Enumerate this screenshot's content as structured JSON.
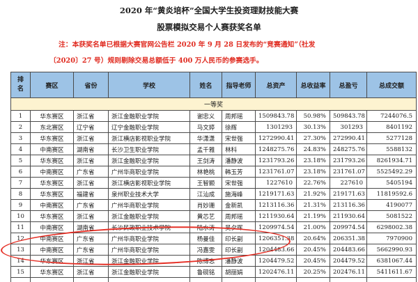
{
  "document": {
    "title_line1": "2020 年“黄炎培杯”全国大学生投资理财技能大赛",
    "title_line2": "股票模拟交易个人赛获奖名单",
    "note_line1": "注：本获奖名单已根据大赛官网公告栏 2020 年 9 月 28 日发布的“竞赛通知”（社发",
    "note_line2": "〔2020〕27 号）规则剔除交易总额低于 400 万人民币的参赛选手。"
  },
  "table": {
    "headers": [
      "排名",
      "赛区",
      "省份",
      "学校",
      "姓名",
      "指导老师",
      "总资产",
      "总收益率",
      "总盈亏",
      "总成交额"
    ],
    "section_label": "一等奖",
    "rows": [
      [
        "1",
        "华东赛区",
        "浙江省",
        "浙江金融职业学院",
        "谢忠义",
        "周邦瑶",
        "1509843.78",
        "50.98%",
        "509843.78",
        "7244076.5"
      ],
      [
        "2",
        "东北赛区",
        "辽宁省",
        "辽宁金融职业学院",
        "马文婷",
        "徐辉",
        "1301293",
        "30.13%",
        "301293",
        "8401192"
      ],
      [
        "3",
        "华东赛区",
        "浙江省",
        "浙江横店影视职业学院",
        "华潇潇",
        "宋世强",
        "1272990.41",
        "27.30%",
        "272990.41",
        "5277128"
      ],
      [
        "4",
        "中南赛区",
        "湖南省",
        "长沙卫生职业学院",
        "孟千雅",
        "林科",
        "1248275.76",
        "24.83%",
        "248275.76",
        "5588132"
      ],
      [
        "5",
        "华东赛区",
        "浙江省",
        "浙江金融职业学院",
        "王剑涛",
        "潘静波",
        "1231793.26",
        "23.18%",
        "231793.26",
        "8261934.71"
      ],
      [
        "6",
        "中南赛区",
        "广东省",
        "广州华商职业学院",
        "林艳桃",
        "韩玉芳",
        "1231761.07",
        "23.18%",
        "231761.07",
        "5525492.29"
      ],
      [
        "7",
        "华东赛区",
        "浙江省",
        "浙江横店影视职业学院",
        "王智颢",
        "宋世强",
        "1227610",
        "22.76%",
        "227610",
        "5405194"
      ],
      [
        "8",
        "华东赛区",
        "福建省",
        "泉州职业技术大学",
        "江汕成",
        "施海峰",
        "1219171.63",
        "21.92%",
        "219171.63",
        "11819592.6"
      ],
      [
        "9",
        "中南赛区",
        "广东省",
        "广州华商职业学院",
        "肖妙珊",
        "金新凯",
        "1213116.36",
        "21.31%",
        "213116.36",
        "4190077"
      ],
      [
        "10",
        "华东赛区",
        "浙江省",
        "浙江金融职业学院",
        "黄芯艺",
        "周邦瑶",
        "1211930.64",
        "21.19%",
        "211930.64",
        "5081522"
      ],
      [
        "11",
        "中南赛区",
        "湖南省",
        "长沙民政职业技术学院",
        "陆水涛",
        "吴夕晖",
        "1209974.54",
        "21.00%",
        "209974.54",
        "6298002.38"
      ],
      [
        "12",
        "中南赛区",
        "广东省",
        "广州华商职业学院",
        "杨曼佳",
        "印长副",
        "1206351.38",
        "20.64%",
        "206351.38",
        "7970900"
      ],
      [
        "13",
        "中南赛区",
        "广东省",
        "广州华商职业学院",
        "冯嘉雯",
        "印长副",
        "1204483.66",
        "20.45%",
        "204483.66",
        "5662990.93"
      ],
      [
        "14",
        "华东赛区",
        "浙江省",
        "浙江金融职业学院",
        "陈博志",
        "潘静波",
        "1204479.52",
        "20.45%",
        "204479.52",
        "6381067.44"
      ],
      [
        "15",
        "华东赛区",
        "浙江省",
        "浙江金融职业学院",
        "鲁砚铭",
        "胡丽娟",
        "1202476.11",
        "20.25%",
        "202476.11",
        "5411611.67"
      ]
    ]
  },
  "annotation": {
    "shape": "hand-drawn-ellipse",
    "circled_ranks": [
      "12",
      "13"
    ]
  },
  "colors": {
    "header_bg": "#9dc3e6",
    "section_bg": "#fdf3d0",
    "note_red": "#e02b20",
    "annotation_red": "#e53026"
  }
}
